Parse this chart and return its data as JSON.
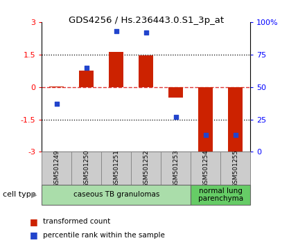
{
  "title": "GDS4256 / Hs.236443.0.S1_3p_at",
  "samples": [
    "GSM501249",
    "GSM501250",
    "GSM501251",
    "GSM501252",
    "GSM501253",
    "GSM501254",
    "GSM501255"
  ],
  "transformed_counts": [
    0.02,
    0.75,
    1.62,
    1.46,
    -0.5,
    -3.1,
    -3.05
  ],
  "percentile_ranks": [
    37,
    65,
    93,
    92,
    27,
    13,
    13
  ],
  "ylim_left": [
    -3,
    3
  ],
  "ylim_right": [
    0,
    100
  ],
  "yticks_left": [
    -3,
    -1.5,
    0,
    1.5,
    3
  ],
  "yticks_right": [
    0,
    25,
    50,
    75,
    100
  ],
  "ytick_labels_left": [
    "-3",
    "-1.5",
    "0",
    "1.5",
    "3"
  ],
  "ytick_labels_right": [
    "0",
    "25",
    "50",
    "75",
    "100%"
  ],
  "hlines_dotted": [
    -1.5,
    1.5
  ],
  "hline_dashed": 0,
  "bar_color": "#CC2200",
  "dot_color": "#2244CC",
  "dashed_color": "#DD3333",
  "cell_type_groups": [
    {
      "label": "caseous TB granulomas",
      "start": 0,
      "end": 5,
      "color": "#AADDAA"
    },
    {
      "label": "normal lung\nparenchyma",
      "start": 5,
      "end": 7,
      "color": "#66CC66"
    }
  ],
  "cell_type_label": "cell type",
  "legend_items": [
    {
      "color": "#CC2200",
      "label": "transformed count"
    },
    {
      "color": "#2244CC",
      "label": "percentile rank within the sample"
    }
  ],
  "bg_color": "#FFFFFF",
  "sample_label_bg": "#CCCCCC",
  "bar_width": 0.5
}
